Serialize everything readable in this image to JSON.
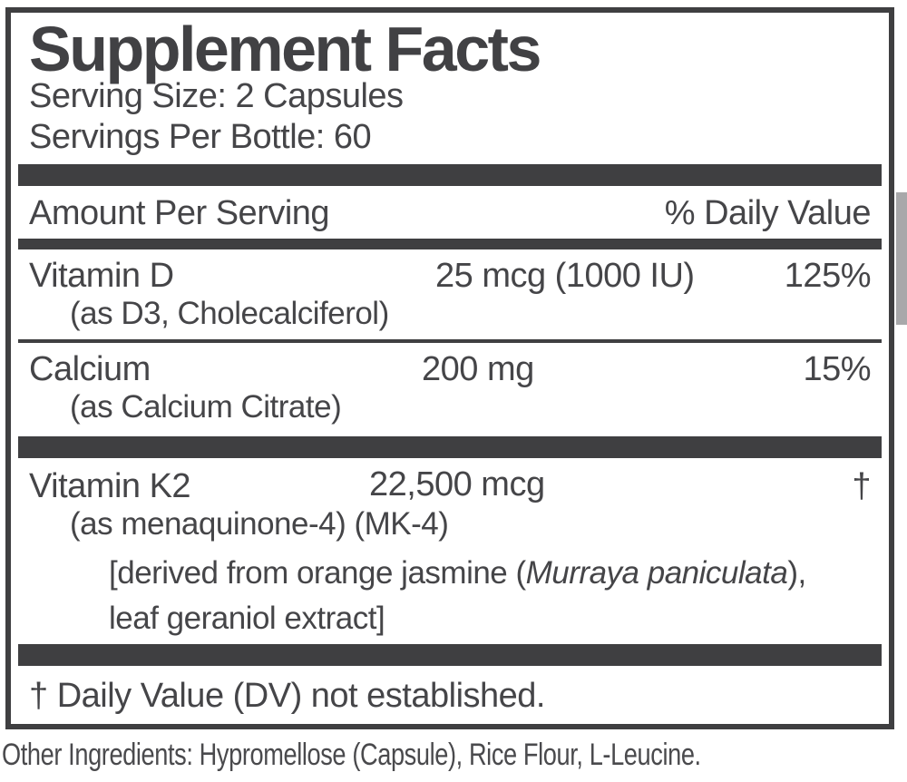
{
  "panel": {
    "title": "Supplement Facts",
    "serving_size": "Serving Size: 2 Capsules",
    "servings_per_bottle": "Servings Per Bottle: 60",
    "header": {
      "amount_label": "Amount Per Serving",
      "dv_label": "% Daily Value"
    },
    "rows": [
      {
        "name": "Vitamin D",
        "amount": "25 mcg (1000 IU)",
        "dv": "125%",
        "detail": "(as D3, Cholecalciferol)"
      },
      {
        "name": "Calcium",
        "amount": "200 mg",
        "dv": "15%",
        "detail": "(as Calcium Citrate)"
      },
      {
        "name": "Vitamin K2",
        "amount": "22,500 mcg",
        "dv": "†",
        "detail": "(as menaquinone-4) (MK-4)",
        "source_line1_prefix": "[derived from orange jasmine (",
        "source_species": "Murraya paniculata",
        "source_line1_suffix": "),",
        "source_line2": "leaf geraniol extract]"
      }
    ],
    "footnote": "† Daily Value (DV) not established."
  },
  "other_ingredients": "Other Ingredients: Hypromellose (Capsule), Rice Flour, L-Leucine.",
  "colors": {
    "ink": "#3f3f41",
    "text": "#454548",
    "tab_gray": "#a8a8aa",
    "background": "#ffffff"
  }
}
